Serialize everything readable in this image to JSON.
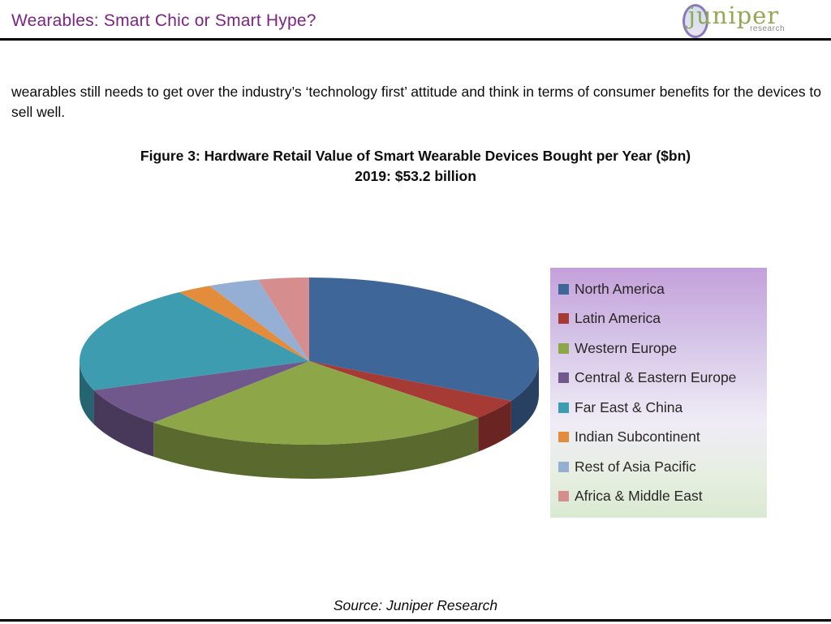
{
  "header": {
    "title": "Wearables: Smart Chic or Smart Hype?",
    "logo": {
      "word": "juniper",
      "sub": "research"
    }
  },
  "body": {
    "paragraph": "wearables still needs to get over the industry’s ‘technology first’ attitude and think in terms of consumer benefits for the devices to sell well."
  },
  "figure": {
    "title_line1": "Figure 3: Hardware Retail Value of Smart Wearable Devices Bought per Year ($bn)",
    "title_line2": "2019: $53.2 billion"
  },
  "chart_data": {
    "type": "pie",
    "style": "3d",
    "title": "Figure 3: Hardware Retail Value of Smart Wearable Devices Bought per Year ($bn)",
    "subtitle": "2019: $53.2 billion",
    "total_value_bn": 53.2,
    "unit": "$bn",
    "legend_position": "right",
    "values_estimated_from_slice_angles": true,
    "series": [
      {
        "label": "North America",
        "value_bn": 17.5,
        "share_pct": 33.0,
        "color": "#3F6699"
      },
      {
        "label": "Latin America",
        "value_bn": 2.1,
        "share_pct": 4.0,
        "color": "#A63A35"
      },
      {
        "label": "Western Europe",
        "value_bn": 13.3,
        "share_pct": 25.0,
        "color": "#8CA648"
      },
      {
        "label": "Central & Eastern Europe",
        "value_bn": 4.0,
        "share_pct": 7.5,
        "color": "#70588C"
      },
      {
        "label": "Far East & China",
        "value_bn": 11.2,
        "share_pct": 21.0,
        "color": "#3D9CB0"
      },
      {
        "label": "Indian Subcontinent",
        "value_bn": 1.3,
        "share_pct": 2.5,
        "color": "#E38D3C"
      },
      {
        "label": "Rest of Asia Pacific",
        "value_bn": 1.9,
        "share_pct": 3.5,
        "color": "#95AFD4"
      },
      {
        "label": "Africa & Middle East",
        "value_bn": 1.9,
        "share_pct": 3.5,
        "color": "#D58E8D"
      }
    ]
  },
  "source": {
    "text": "Source: Juniper Research"
  }
}
